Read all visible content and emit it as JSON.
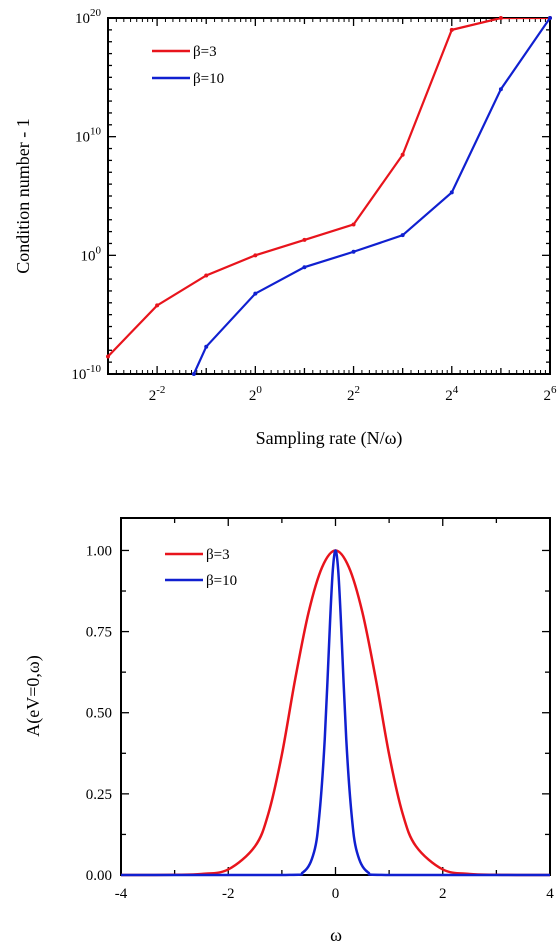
{
  "chart_data": [
    {
      "type": "line",
      "xlabel": "Sampling rate (N/ω)",
      "ylabel": "Condition number - 1",
      "x_scale": "log2",
      "y_scale": "log10",
      "xlim": [
        0.125,
        64
      ],
      "ylim": [
        1e-10,
        1e+20
      ],
      "x_tick_labels": [
        {
          "base": "2",
          "exp": "-2",
          "value": 0.25
        },
        {
          "base": "2",
          "exp": "0",
          "value": 1
        },
        {
          "base": "2",
          "exp": "2",
          "value": 4
        },
        {
          "base": "2",
          "exp": "4",
          "value": 16
        },
        {
          "base": "2",
          "exp": "6",
          "value": 64
        }
      ],
      "y_tick_labels": [
        {
          "base": "10",
          "exp": "-10",
          "value": 1e-10
        },
        {
          "base": "10",
          "exp": "0",
          "value": 1
        },
        {
          "base": "10",
          "exp": "10",
          "value": 10000000000.0
        },
        {
          "base": "10",
          "exp": "20",
          "value": 1e+20
        }
      ],
      "legend_position": "top-left",
      "series": [
        {
          "name": "β=3",
          "color": "#e8141c",
          "x": [
            0.125,
            0.25,
            0.5,
            1,
            2,
            4,
            8,
            16,
            32,
            64
          ],
          "y": [
            3e-09,
            6e-05,
            0.02,
            1,
            20,
            400,
            300000000.0,
            1e+19,
            1e+20,
            1e+20
          ]
        },
        {
          "name": "β=10",
          "color": "#1020d0",
          "x": [
            0.42,
            0.5,
            1,
            2,
            4,
            8,
            16,
            32,
            64
          ],
          "y": [
            1e-10,
            2e-08,
            0.0006,
            0.1,
            2,
            50,
            200000.0,
            100000000000000.0,
            1e+20
          ]
        }
      ]
    },
    {
      "type": "line",
      "xlabel": "ω",
      "ylabel": "A(eV=0,ω)",
      "xlim": [
        -4,
        4
      ],
      "ylim": [
        0,
        1.1
      ],
      "x_ticks": [
        "-4",
        "-2",
        "0",
        "2",
        "4"
      ],
      "y_ticks": [
        "0.00",
        "0.25",
        "0.50",
        "0.75",
        "1.00"
      ],
      "legend_position": "top-left",
      "series": [
        {
          "name": "β=3",
          "color": "#e8141c",
          "x": [
            -4,
            -3.5,
            -3,
            -2.5,
            -2,
            -1.5,
            -1.25,
            -1,
            -0.75,
            -0.5,
            -0.25,
            0,
            0.25,
            0.5,
            0.75,
            1,
            1.25,
            1.5,
            2,
            2.5,
            3,
            3.5,
            4
          ],
          "y": [
            0.0,
            0.0001,
            0.0006,
            0.0032,
            0.0171,
            0.0888,
            0.1901,
            0.3712,
            0.6051,
            0.8106,
            0.9484,
            1.0,
            0.9484,
            0.8106,
            0.6051,
            0.3712,
            0.1901,
            0.0888,
            0.0171,
            0.0032,
            0.0006,
            0.0001,
            0.0
          ]
        },
        {
          "name": "β=10",
          "color": "#1020d0",
          "x": [
            -4,
            -1,
            -0.6,
            -0.4,
            -0.3,
            -0.2,
            -0.1,
            -0.05,
            0,
            0.05,
            0.1,
            0.2,
            0.3,
            0.4,
            0.6,
            1,
            4
          ],
          "y": [
            0,
            0.0001,
            0.009,
            0.0707,
            0.1863,
            0.42,
            0.7864,
            0.9398,
            1.0,
            0.9398,
            0.7864,
            0.42,
            0.1863,
            0.0707,
            0.009,
            0.0001,
            0
          ]
        }
      ]
    }
  ]
}
